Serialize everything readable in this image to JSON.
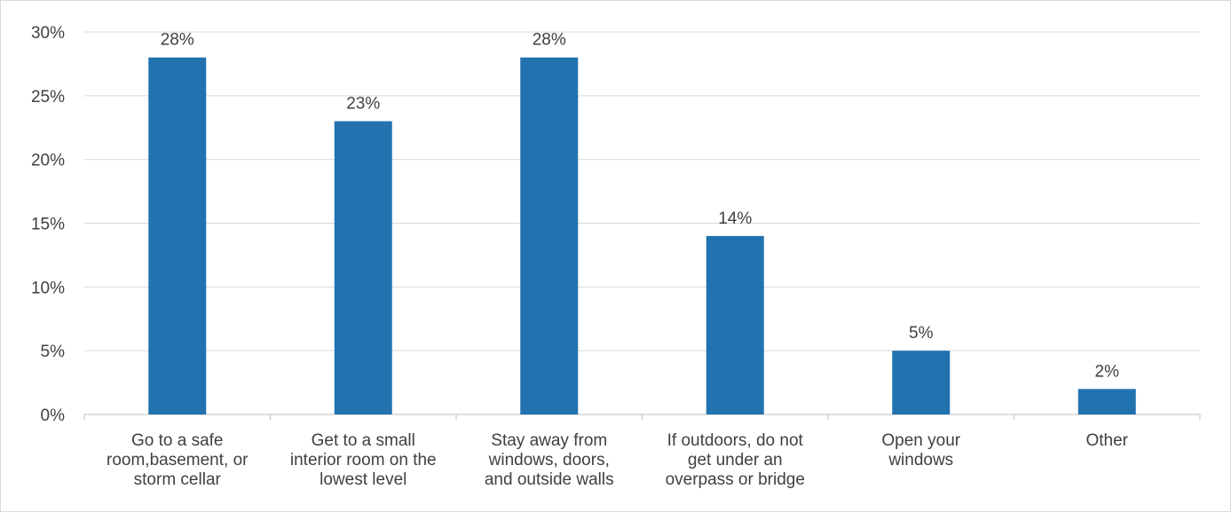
{
  "chart_data": {
    "type": "bar",
    "title": "",
    "xlabel": "",
    "ylabel": "",
    "ylim": [
      0,
      30
    ],
    "yticks": [
      0,
      5,
      10,
      15,
      20,
      25,
      30
    ],
    "ytick_labels": [
      "0%",
      "5%",
      "10%",
      "15%",
      "20%",
      "25%",
      "30%"
    ],
    "grid": true,
    "legend": "none",
    "bar_color": "#2272b0",
    "categories": [
      [
        "Go to a safe",
        "room,basement, or",
        "storm cellar"
      ],
      [
        "Get to a small",
        "interior room on the",
        "lowest level"
      ],
      [
        "Stay away from",
        "windows, doors,",
        "and outside walls"
      ],
      [
        "If outdoors, do not",
        "get under an",
        "overpass or bridge"
      ],
      [
        "Open your",
        "windows"
      ],
      [
        "Other"
      ]
    ],
    "values": [
      28,
      23,
      28,
      14,
      5,
      2
    ],
    "data_labels": [
      "28%",
      "23%",
      "28%",
      "14%",
      "5%",
      "2%"
    ]
  }
}
